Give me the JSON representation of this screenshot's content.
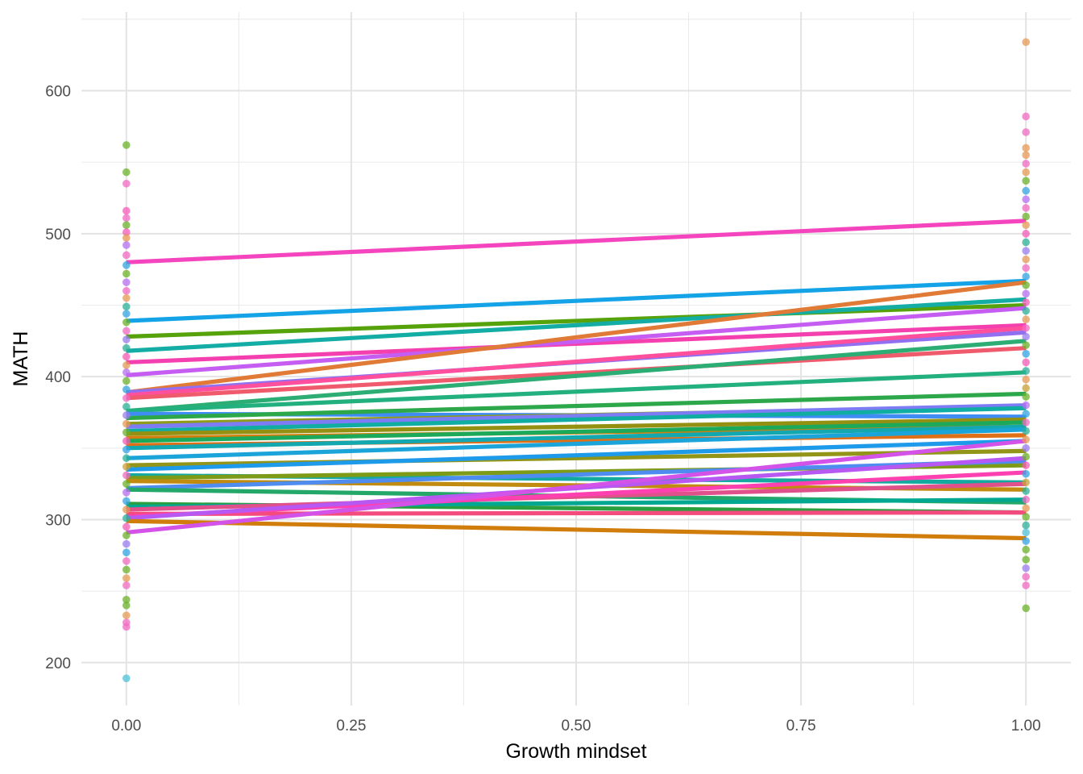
{
  "chart_data": {
    "type": "line",
    "xlabel": "Growth mindset",
    "ylabel": "MATH",
    "xlim": [
      -0.05,
      1.05
    ],
    "ylim": [
      170,
      655
    ],
    "x_ticks": [
      {
        "value": 0,
        "label": "0.00"
      },
      {
        "value": 0.25,
        "label": "0.25"
      },
      {
        "value": 0.5,
        "label": "0.50"
      },
      {
        "value": 0.75,
        "label": "0.75"
      },
      {
        "value": 1,
        "label": "1.00"
      }
    ],
    "y_ticks": [
      {
        "value": 200,
        "label": "200"
      },
      {
        "value": 300,
        "label": "300"
      },
      {
        "value": 400,
        "label": "400"
      },
      {
        "value": 500,
        "label": "500"
      },
      {
        "value": 600,
        "label": "600"
      }
    ],
    "grid": true,
    "legend": "none",
    "lines": [
      {
        "y0": 480,
        "y1": 509,
        "color": "#F445BF"
      },
      {
        "y0": 439,
        "y1": 467,
        "color": "#14A3E6"
      },
      {
        "y0": 428,
        "y1": 450,
        "color": "#56A20B"
      },
      {
        "y0": 418,
        "y1": 454,
        "color": "#14ADA5"
      },
      {
        "y0": 410,
        "y1": 436,
        "color": "#F43FAF"
      },
      {
        "y0": 401,
        "y1": 448,
        "color": "#C65DF2"
      },
      {
        "y0": 389,
        "y1": 466,
        "color": "#E07A36"
      },
      {
        "y0": 389,
        "y1": 431,
        "color": "#9070F0"
      },
      {
        "y0": 387,
        "y1": 434,
        "color": "#FF4F9D"
      },
      {
        "y0": 385,
        "y1": 420,
        "color": "#F05A6D"
      },
      {
        "y0": 376,
        "y1": 425,
        "color": "#2CAD73"
      },
      {
        "y0": 376,
        "y1": 403,
        "color": "#22B07F"
      },
      {
        "y0": 374,
        "y1": 372,
        "color": "#3E8CF4"
      },
      {
        "y0": 371,
        "y1": 388,
        "color": "#2CA84A"
      },
      {
        "y0": 367,
        "y1": 379,
        "color": "#8E9B1B"
      },
      {
        "y0": 365,
        "y1": 380,
        "color": "#7D7CF4"
      },
      {
        "y0": 362,
        "y1": 378,
        "color": "#10ADA3"
      },
      {
        "y0": 360,
        "y1": 370,
        "color": "#949112"
      },
      {
        "y0": 357,
        "y1": 365,
        "color": "#D47F0D"
      },
      {
        "y0": 355,
        "y1": 368,
        "color": "#1CA95A"
      },
      {
        "y0": 352,
        "y1": 359,
        "color": "#E07018"
      },
      {
        "y0": 350,
        "y1": 365,
        "color": "#13A7AF"
      },
      {
        "y0": 343,
        "y1": 363,
        "color": "#1BA4DA"
      },
      {
        "y0": 338,
        "y1": 348,
        "color": "#939518"
      },
      {
        "y0": 335,
        "y1": 355,
        "color": "#1E9AEA"
      },
      {
        "y0": 331,
        "y1": 326,
        "color": "#14AA9F"
      },
      {
        "y0": 329,
        "y1": 338,
        "color": "#7E9B18"
      },
      {
        "y0": 327,
        "y1": 321,
        "color": "#C18B10"
      },
      {
        "y0": 322,
        "y1": 341,
        "color": "#4F8CF0"
      },
      {
        "y0": 321,
        "y1": 312,
        "color": "#23A869"
      },
      {
        "y0": 311,
        "y1": 305,
        "color": "#2B9E3E"
      },
      {
        "y0": 309,
        "y1": 314,
        "color": "#00A892"
      },
      {
        "y0": 307,
        "y1": 325,
        "color": "#E0508B"
      },
      {
        "y0": 304,
        "y1": 305,
        "color": "#F34B7E"
      },
      {
        "y0": 302,
        "y1": 333,
        "color": "#FF40B0"
      },
      {
        "y0": 301,
        "y1": 343,
        "color": "#B758F2"
      },
      {
        "y0": 299,
        "y1": 287,
        "color": "#D17D0C"
      },
      {
        "y0": 291,
        "y1": 355,
        "color": "#D353E9"
      }
    ],
    "points_x0": [
      {
        "y": 562,
        "color": "#6BB22A"
      },
      {
        "y": 543,
        "color": "#6BB22A"
      },
      {
        "y": 535,
        "color": "#F06BC2"
      },
      {
        "y": 516,
        "color": "#F65BB8"
      },
      {
        "y": 511,
        "color": "#F06BC2"
      },
      {
        "y": 506,
        "color": "#6BB22A"
      },
      {
        "y": 501,
        "color": "#F65BB8"
      },
      {
        "y": 497,
        "color": "#E69A55"
      },
      {
        "y": 492,
        "color": "#B76EF2"
      },
      {
        "y": 485,
        "color": "#F06BC2"
      },
      {
        "y": 478,
        "color": "#34A4E4"
      },
      {
        "y": 472,
        "color": "#6BB22A"
      },
      {
        "y": 466,
        "color": "#B76EF2"
      },
      {
        "y": 460,
        "color": "#F06BC2"
      },
      {
        "y": 455,
        "color": "#E69A55"
      },
      {
        "y": 449,
        "color": "#2CB098"
      },
      {
        "y": 444,
        "color": "#34A4E4"
      },
      {
        "y": 438,
        "color": "#6BB22A"
      },
      {
        "y": 432,
        "color": "#F06BC2"
      },
      {
        "y": 426,
        "color": "#9B7EF0"
      },
      {
        "y": 420,
        "color": "#2CB098"
      },
      {
        "y": 414,
        "color": "#F65BB8"
      },
      {
        "y": 408,
        "color": "#E69A55"
      },
      {
        "y": 403,
        "color": "#B76EF2"
      },
      {
        "y": 397,
        "color": "#6BB22A"
      },
      {
        "y": 391,
        "color": "#34A4E4"
      },
      {
        "y": 385,
        "color": "#F06BC2"
      },
      {
        "y": 379,
        "color": "#2CB098"
      },
      {
        "y": 373,
        "color": "#9B7EF0"
      },
      {
        "y": 367,
        "color": "#E69A55"
      },
      {
        "y": 361,
        "color": "#6BB22A"
      },
      {
        "y": 355,
        "color": "#F65BB8"
      },
      {
        "y": 349,
        "color": "#34A4E4"
      },
      {
        "y": 343,
        "color": "#2CB098"
      },
      {
        "y": 337,
        "color": "#C9A239"
      },
      {
        "y": 331,
        "color": "#F06BC2"
      },
      {
        "y": 325,
        "color": "#6BB22A"
      },
      {
        "y": 319,
        "color": "#B76EF2"
      },
      {
        "y": 313,
        "color": "#34A4E4"
      },
      {
        "y": 307,
        "color": "#E69A55"
      },
      {
        "y": 301,
        "color": "#2CB098"
      },
      {
        "y": 295,
        "color": "#F65BB8"
      },
      {
        "y": 289,
        "color": "#6BB22A"
      },
      {
        "y": 283,
        "color": "#9B7EF0"
      },
      {
        "y": 277,
        "color": "#34A4E4"
      },
      {
        "y": 271,
        "color": "#F06BC2"
      },
      {
        "y": 265,
        "color": "#6BB22A"
      },
      {
        "y": 259,
        "color": "#E69A55"
      },
      {
        "y": 254,
        "color": "#F06BC2"
      },
      {
        "y": 244,
        "color": "#6BB22A"
      },
      {
        "y": 240,
        "color": "#6BB22A"
      },
      {
        "y": 233,
        "color": "#E69A55"
      },
      {
        "y": 228,
        "color": "#F06BC2"
      },
      {
        "y": 225,
        "color": "#F06BC2"
      },
      {
        "y": 189,
        "color": "#4FC1D8"
      }
    ],
    "points_x1": [
      {
        "y": 634,
        "color": "#E69A55"
      },
      {
        "y": 582,
        "color": "#F06BC2"
      },
      {
        "y": 571,
        "color": "#F06BC2"
      },
      {
        "y": 560,
        "color": "#E69A55"
      },
      {
        "y": 555,
        "color": "#E69A55"
      },
      {
        "y": 549,
        "color": "#F06BC2"
      },
      {
        "y": 543,
        "color": "#E69A55"
      },
      {
        "y": 537,
        "color": "#6BB22A"
      },
      {
        "y": 530,
        "color": "#34A4E4"
      },
      {
        "y": 524,
        "color": "#B76EF2"
      },
      {
        "y": 518,
        "color": "#F06BC2"
      },
      {
        "y": 512,
        "color": "#6BB22A"
      },
      {
        "y": 506,
        "color": "#E69A55"
      },
      {
        "y": 500,
        "color": "#F65BB8"
      },
      {
        "y": 494,
        "color": "#2CB098"
      },
      {
        "y": 488,
        "color": "#9B7EF0"
      },
      {
        "y": 482,
        "color": "#E69A55"
      },
      {
        "y": 476,
        "color": "#F06BC2"
      },
      {
        "y": 470,
        "color": "#34A4E4"
      },
      {
        "y": 464,
        "color": "#6BB22A"
      },
      {
        "y": 458,
        "color": "#B76EF2"
      },
      {
        "y": 452,
        "color": "#F65BB8"
      },
      {
        "y": 446,
        "color": "#2CB098"
      },
      {
        "y": 440,
        "color": "#E69A55"
      },
      {
        "y": 434,
        "color": "#F06BC2"
      },
      {
        "y": 428,
        "color": "#9B7EF0"
      },
      {
        "y": 422,
        "color": "#6BB22A"
      },
      {
        "y": 416,
        "color": "#34A4E4"
      },
      {
        "y": 410,
        "color": "#F65BB8"
      },
      {
        "y": 404,
        "color": "#2CB098"
      },
      {
        "y": 398,
        "color": "#E69A55"
      },
      {
        "y": 392,
        "color": "#C9A239"
      },
      {
        "y": 386,
        "color": "#6BB22A"
      },
      {
        "y": 380,
        "color": "#B76EF2"
      },
      {
        "y": 374,
        "color": "#34A4E4"
      },
      {
        "y": 368,
        "color": "#F06BC2"
      },
      {
        "y": 362,
        "color": "#2CB098"
      },
      {
        "y": 356,
        "color": "#E69A55"
      },
      {
        "y": 350,
        "color": "#9B7EF0"
      },
      {
        "y": 344,
        "color": "#6BB22A"
      },
      {
        "y": 338,
        "color": "#F65BB8"
      },
      {
        "y": 332,
        "color": "#34A4E4"
      },
      {
        "y": 326,
        "color": "#C9A239"
      },
      {
        "y": 320,
        "color": "#2CB098"
      },
      {
        "y": 314,
        "color": "#F06BC2"
      },
      {
        "y": 308,
        "color": "#E69A55"
      },
      {
        "y": 302,
        "color": "#6BB22A"
      },
      {
        "y": 296,
        "color": "#2CB098"
      },
      {
        "y": 291,
        "color": "#4FC1D8"
      },
      {
        "y": 285,
        "color": "#34A4E4"
      },
      {
        "y": 279,
        "color": "#6BB22A"
      },
      {
        "y": 272,
        "color": "#6BB22A"
      },
      {
        "y": 266,
        "color": "#9B7EF0"
      },
      {
        "y": 260,
        "color": "#F06BC2"
      },
      {
        "y": 254,
        "color": "#F06BC2"
      },
      {
        "y": 238,
        "color": "#6BB22A"
      }
    ]
  }
}
